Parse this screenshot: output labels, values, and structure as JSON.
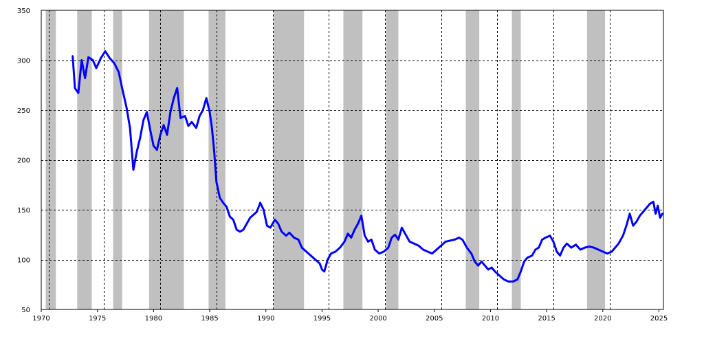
{
  "chart_data": {
    "type": "line",
    "title": "",
    "xlabel": "",
    "ylabel": "",
    "xlim": [
      1970,
      2025.4
    ],
    "ylim": [
      50,
      350
    ],
    "x_ticks": [
      1970,
      1975,
      1980,
      1985,
      1990,
      1995,
      2000,
      2005,
      2010,
      2015,
      2020,
      2025
    ],
    "y_ticks": [
      50,
      100,
      150,
      200,
      250,
      300,
      350
    ],
    "grid": "dashed, vertical lines offset from ticks and horizontal at ticks",
    "shaded_periods": [
      [
        1970.4,
        1971.3
      ],
      [
        1973.2,
        1974.5
      ],
      [
        1976.4,
        1977.2
      ],
      [
        1979.6,
        1982.7
      ],
      [
        1984.9,
        1986.4
      ],
      [
        1990.7,
        1993.4
      ],
      [
        1996.9,
        1998.6
      ],
      [
        2000.7,
        2001.8
      ],
      [
        2007.8,
        2009.0
      ],
      [
        2011.9,
        2012.7
      ],
      [
        2018.6,
        2020.2
      ]
    ],
    "line_color": "#0000ff",
    "shade_color": "#c0c0c0",
    "series": [
      {
        "values": [
          [
            1972.8,
            304
          ],
          [
            1973.0,
            272
          ],
          [
            1973.3,
            267
          ],
          [
            1973.6,
            300
          ],
          [
            1973.9,
            282
          ],
          [
            1974.2,
            303
          ],
          [
            1974.6,
            300
          ],
          [
            1974.9,
            292
          ],
          [
            1975.3,
            302
          ],
          [
            1975.7,
            309
          ],
          [
            1976.1,
            302
          ],
          [
            1976.5,
            297
          ],
          [
            1976.9,
            288
          ],
          [
            1977.2,
            272
          ],
          [
            1977.6,
            252
          ],
          [
            1977.9,
            232
          ],
          [
            1978.2,
            190
          ],
          [
            1978.5,
            208
          ],
          [
            1978.8,
            222
          ],
          [
            1979.1,
            240
          ],
          [
            1979.4,
            248
          ],
          [
            1979.7,
            230
          ],
          [
            1980.0,
            214
          ],
          [
            1980.3,
            210
          ],
          [
            1980.6,
            225
          ],
          [
            1980.9,
            235
          ],
          [
            1981.2,
            225
          ],
          [
            1981.5,
            248
          ],
          [
            1981.8,
            262
          ],
          [
            1982.1,
            272
          ],
          [
            1982.4,
            242
          ],
          [
            1982.8,
            244
          ],
          [
            1983.1,
            234
          ],
          [
            1983.4,
            238
          ],
          [
            1983.8,
            232
          ],
          [
            1984.1,
            244
          ],
          [
            1984.4,
            250
          ],
          [
            1984.7,
            262
          ],
          [
            1985.0,
            248
          ],
          [
            1985.2,
            232
          ],
          [
            1985.4,
            208
          ],
          [
            1985.6,
            178
          ],
          [
            1985.9,
            162
          ],
          [
            1986.2,
            157
          ],
          [
            1986.5,
            153
          ],
          [
            1986.8,
            143
          ],
          [
            1987.1,
            140
          ],
          [
            1987.4,
            130
          ],
          [
            1987.7,
            128
          ],
          [
            1988.0,
            130
          ],
          [
            1988.3,
            136
          ],
          [
            1988.6,
            142
          ],
          [
            1988.9,
            145
          ],
          [
            1989.2,
            148
          ],
          [
            1989.5,
            157
          ],
          [
            1989.8,
            150
          ],
          [
            1990.1,
            134
          ],
          [
            1990.4,
            132
          ],
          [
            1990.8,
            140
          ],
          [
            1991.1,
            136
          ],
          [
            1991.4,
            128
          ],
          [
            1991.8,
            124
          ],
          [
            1992.1,
            127
          ],
          [
            1992.5,
            122
          ],
          [
            1992.9,
            120
          ],
          [
            1993.2,
            112
          ],
          [
            1993.6,
            108
          ],
          [
            1994.0,
            104
          ],
          [
            1994.4,
            100
          ],
          [
            1994.8,
            96
          ],
          [
            1995.0,
            90
          ],
          [
            1995.2,
            88
          ],
          [
            1995.5,
            100
          ],
          [
            1995.8,
            106
          ],
          [
            1996.2,
            108
          ],
          [
            1996.6,
            112
          ],
          [
            1997.0,
            118
          ],
          [
            1997.3,
            126
          ],
          [
            1997.6,
            122
          ],
          [
            1997.9,
            130
          ],
          [
            1998.2,
            136
          ],
          [
            1998.5,
            144
          ],
          [
            1998.8,
            124
          ],
          [
            1999.1,
            118
          ],
          [
            1999.4,
            120
          ],
          [
            1999.7,
            110
          ],
          [
            2000.1,
            106
          ],
          [
            2000.5,
            108
          ],
          [
            2000.9,
            112
          ],
          [
            2001.2,
            122
          ],
          [
            2001.5,
            125
          ],
          [
            2001.8,
            120
          ],
          [
            2002.1,
            132
          ],
          [
            2002.4,
            126
          ],
          [
            2002.8,
            118
          ],
          [
            2003.2,
            116
          ],
          [
            2003.6,
            114
          ],
          [
            2004.0,
            110
          ],
          [
            2004.4,
            108
          ],
          [
            2004.8,
            106
          ],
          [
            2005.2,
            110
          ],
          [
            2005.6,
            114
          ],
          [
            2006.0,
            118
          ],
          [
            2006.4,
            119
          ],
          [
            2006.8,
            120
          ],
          [
            2007.2,
            122
          ],
          [
            2007.5,
            120
          ],
          [
            2007.9,
            112
          ],
          [
            2008.3,
            106
          ],
          [
            2008.6,
            98
          ],
          [
            2008.9,
            94
          ],
          [
            2009.2,
            98
          ],
          [
            2009.5,
            94
          ],
          [
            2009.8,
            90
          ],
          [
            2010.1,
            92
          ],
          [
            2010.4,
            88
          ],
          [
            2010.8,
            84
          ],
          [
            2011.2,
            80
          ],
          [
            2011.6,
            78
          ],
          [
            2012.0,
            78
          ],
          [
            2012.4,
            80
          ],
          [
            2012.7,
            88
          ],
          [
            2013.0,
            98
          ],
          [
            2013.3,
            102
          ],
          [
            2013.7,
            104
          ],
          [
            2014.0,
            110
          ],
          [
            2014.3,
            112
          ],
          [
            2014.6,
            120
          ],
          [
            2014.9,
            122
          ],
          [
            2015.3,
            124
          ],
          [
            2015.6,
            118
          ],
          [
            2015.9,
            108
          ],
          [
            2016.2,
            104
          ],
          [
            2016.5,
            112
          ],
          [
            2016.8,
            116
          ],
          [
            2017.2,
            112
          ],
          [
            2017.6,
            115
          ],
          [
            2018.0,
            110
          ],
          [
            2018.4,
            112
          ],
          [
            2018.8,
            113
          ],
          [
            2019.2,
            112
          ],
          [
            2019.6,
            110
          ],
          [
            2020.0,
            108
          ],
          [
            2020.4,
            106
          ],
          [
            2020.8,
            108
          ],
          [
            2021.1,
            112
          ],
          [
            2021.4,
            116
          ],
          [
            2021.8,
            124
          ],
          [
            2022.1,
            134
          ],
          [
            2022.4,
            146
          ],
          [
            2022.7,
            134
          ],
          [
            2023.0,
            138
          ],
          [
            2023.3,
            144
          ],
          [
            2023.6,
            148
          ],
          [
            2023.9,
            152
          ],
          [
            2024.2,
            156
          ],
          [
            2024.5,
            158
          ],
          [
            2024.7,
            146
          ],
          [
            2024.9,
            154
          ],
          [
            2025.1,
            142
          ],
          [
            2025.3,
            146
          ]
        ]
      }
    ]
  }
}
